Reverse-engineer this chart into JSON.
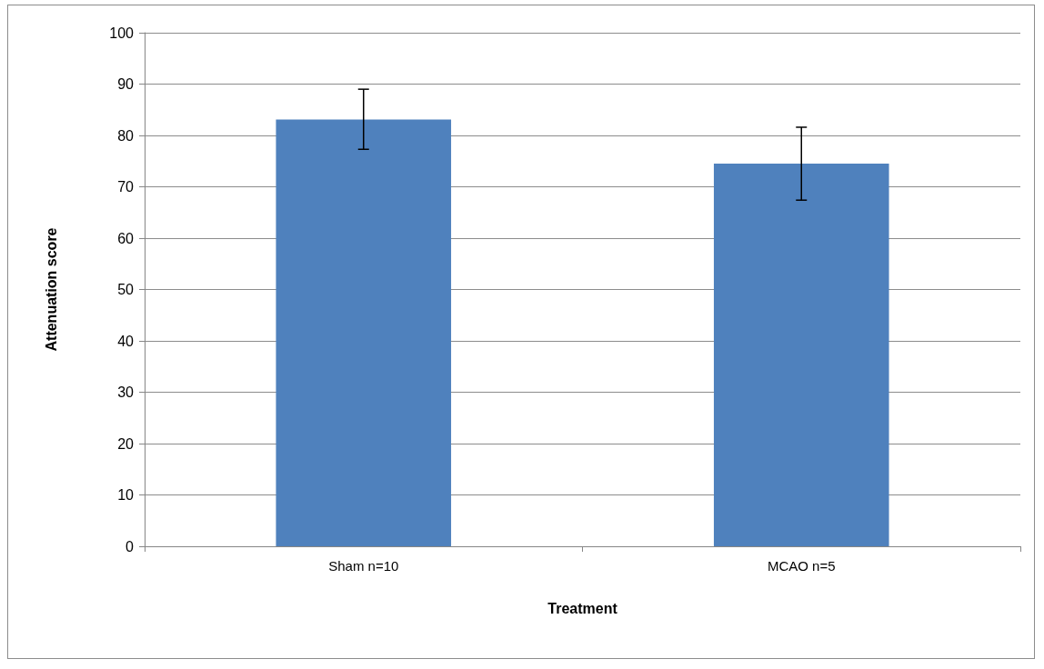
{
  "chart_data": {
    "type": "bar",
    "xlabel": "Treatment",
    "ylabel": "Attenuation score",
    "categories": [
      "Sham n=10",
      "MCAO n=5"
    ],
    "values": [
      83.1,
      74.5
    ],
    "errors": [
      [
        77.3,
        89.0
      ],
      [
        67.4,
        81.6
      ]
    ],
    "color": "#4f81bd",
    "ylim": [
      0,
      100
    ],
    "yticks": [
      0,
      10,
      20,
      30,
      40,
      50,
      60,
      70,
      80,
      90,
      100
    ],
    "grid": "y"
  }
}
